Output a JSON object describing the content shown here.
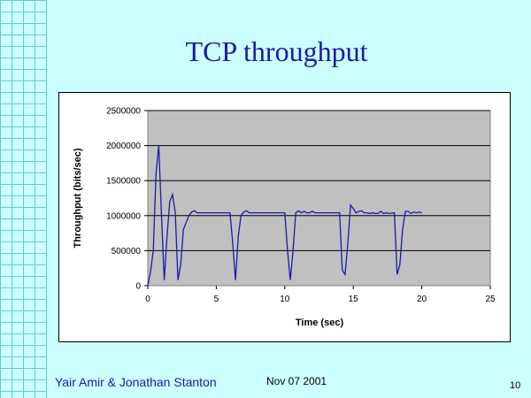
{
  "slide": {
    "title": "TCP throughput",
    "authors": "Yair Amir & Jonathan Stanton",
    "date": "Nov 07 2001",
    "page_number": "10"
  },
  "colors": {
    "background": "#ccffff",
    "title": "#1a1aa6",
    "plot_area": "#c0c0c0",
    "line": "#1a1aa6"
  },
  "chart_data": {
    "type": "line",
    "title": "",
    "xlabel": "Time (sec)",
    "ylabel": "Throughput (bits/sec)",
    "xlim": [
      0,
      25
    ],
    "ylim": [
      0,
      2500000
    ],
    "xticks": [
      "0",
      "5",
      "10",
      "15",
      "20",
      "25"
    ],
    "yticks": [
      "0",
      "500000",
      "1000000",
      "1500000",
      "2000000",
      "2500000"
    ],
    "grid": "horizontal major gridlines",
    "legend": "none",
    "series": [
      {
        "x": [
          0,
          0.2,
          0.4,
          0.6,
          0.8,
          1.0,
          1.2,
          1.4,
          1.6,
          1.8,
          2.0,
          2.2,
          2.4,
          2.6,
          2.8,
          3.0,
          3.2,
          3.4,
          3.6,
          3.8,
          4.0,
          5.0,
          6.0,
          6.2,
          6.4,
          6.6,
          6.8,
          7.0,
          7.2,
          7.4,
          7.6,
          8.0,
          9.0,
          10.0,
          10.2,
          10.4,
          10.6,
          10.8,
          11.0,
          11.2,
          11.4,
          11.6,
          11.8,
          12.0,
          12.2,
          12.4,
          12.6,
          12.8,
          13.0,
          14.0,
          14.2,
          14.4,
          14.6,
          14.8,
          15.0,
          15.2,
          15.4,
          15.6,
          15.8,
          16.0,
          16.2,
          16.4,
          16.6,
          16.8,
          17.0,
          17.2,
          17.4,
          17.6,
          18.0,
          18.2,
          18.4,
          18.6,
          18.8,
          19.0,
          19.2,
          19.4,
          19.6,
          19.8,
          20.0
        ],
        "y": [
          0,
          200000,
          500000,
          1600000,
          2000000,
          1000000,
          80000,
          700000,
          1200000,
          1300000,
          1050000,
          80000,
          300000,
          800000,
          900000,
          1000000,
          1050000,
          1070000,
          1040000,
          1040000,
          1040000,
          1040000,
          1040000,
          600000,
          80000,
          700000,
          1000000,
          1050000,
          1070000,
          1040000,
          1040000,
          1040000,
          1040000,
          1040000,
          500000,
          80000,
          500000,
          1040000,
          1070000,
          1040000,
          1060000,
          1040000,
          1040000,
          1060000,
          1040000,
          1040000,
          1040000,
          1040000,
          1040000,
          1040000,
          220000,
          160000,
          600000,
          1150000,
          1100000,
          1040000,
          1060000,
          1070000,
          1040000,
          1040000,
          1030000,
          1040000,
          1030000,
          1030000,
          1060000,
          1030000,
          1040000,
          1030000,
          1040000,
          160000,
          300000,
          800000,
          1060000,
          1060000,
          1030000,
          1050000,
          1040000,
          1050000,
          1040000
        ]
      }
    ]
  }
}
